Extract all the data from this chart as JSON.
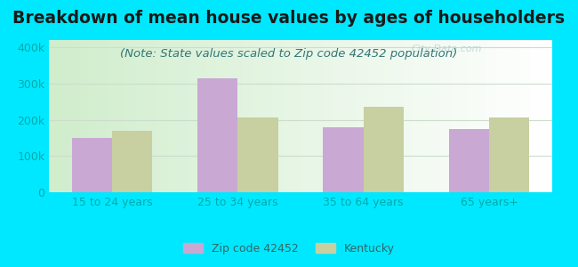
{
  "title": "Breakdown of mean house values by ages of householders",
  "subtitle": "(Note: State values scaled to Zip code 42452 population)",
  "categories": [
    "15 to 24 years",
    "25 to 34 years",
    "35 to 64 years",
    "65 years+"
  ],
  "zip_values": [
    150000,
    315000,
    180000,
    175000
  ],
  "ky_values": [
    170000,
    207000,
    235000,
    207000
  ],
  "zip_color": "#c9a8d4",
  "ky_color": "#c8cfa0",
  "background_outer": "#00e8ff",
  "ylim": [
    0,
    420000
  ],
  "yticks": [
    0,
    100000,
    200000,
    300000,
    400000
  ],
  "ytick_labels": [
    "0",
    "100k",
    "200k",
    "300k",
    "400k"
  ],
  "legend_zip_label": "Zip code 42452",
  "legend_ky_label": "Kentucky",
  "bar_width": 0.32,
  "title_fontsize": 13.5,
  "subtitle_fontsize": 9.5,
  "tick_fontsize": 9,
  "legend_fontsize": 9,
  "tick_color": "#00aaaa",
  "grid_color": "#ccddcc",
  "watermark_text": "City-Data.com",
  "watermark_color": "#aacccc",
  "watermark_alpha": 0.7
}
